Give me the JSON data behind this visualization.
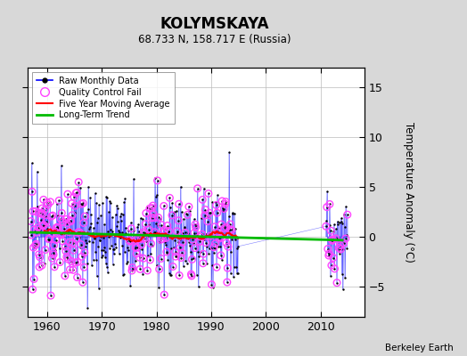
{
  "title": "KOLYMSKAYA",
  "subtitle": "68.733 N, 158.717 E (Russia)",
  "ylabel": "Temperature Anomaly (°C)",
  "attribution": "Berkeley Earth",
  "xlim": [
    1956.5,
    2018
  ],
  "ylim": [
    -8,
    17
  ],
  "yticks": [
    -5,
    0,
    5,
    10,
    15
  ],
  "xticks": [
    1960,
    1970,
    1980,
    1990,
    2000,
    2010
  ],
  "bg_color": "#d8d8d8",
  "plot_bg_color": "#ffffff",
  "raw_color": "#0000ff",
  "dot_color": "#000000",
  "qc_color": "#ff44ff",
  "ma_color": "#ff0000",
  "trend_color": "#00bb00",
  "seed": 42
}
